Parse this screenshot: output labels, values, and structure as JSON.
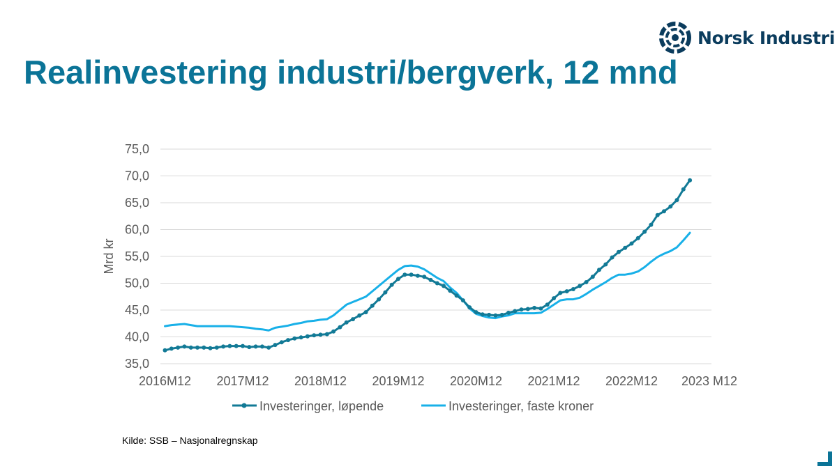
{
  "header": {
    "title": "Realinvestering industri/bergverk, 12 mnd",
    "logo_text": "Norsk Industri"
  },
  "footer": {
    "source": "Kilde: SSB  – Nasjonalregnskap"
  },
  "colors": {
    "title": "#0b7497",
    "series_running": "#127a96",
    "series_fixed": "#18b0e8",
    "grid": "#d9d9d9",
    "axis_text": "#595959",
    "logo": "#0b3c5d"
  },
  "chart_data": {
    "type": "line",
    "title": "",
    "xlabel": "",
    "ylabel": "Mrd kr",
    "ylim": [
      35,
      75
    ],
    "yticks": [
      "35,0",
      "40,0",
      "45,0",
      "50,0",
      "55,0",
      "60,0",
      "65,0",
      "70,0",
      "75,0"
    ],
    "xticks": [
      "2016M12",
      "2017M12",
      "2018M12",
      "2019M12",
      "2020M12",
      "2021M12",
      "2022M12",
      "2023 M12"
    ],
    "grid": true,
    "legend_position": "bottom",
    "x_start": "2016M12",
    "series": [
      {
        "name": "Investeringer, løpende",
        "color": "#127a96",
        "markers": true,
        "values": [
          37.5,
          37.8,
          38.0,
          38.2,
          38.0,
          38.0,
          38.0,
          37.9,
          38.0,
          38.2,
          38.3,
          38.3,
          38.3,
          38.1,
          38.2,
          38.2,
          38.0,
          38.5,
          39.0,
          39.4,
          39.7,
          39.9,
          40.1,
          40.3,
          40.4,
          40.5,
          41.0,
          41.8,
          42.7,
          43.3,
          44.0,
          44.6,
          45.8,
          47.0,
          48.3,
          49.7,
          50.8,
          51.6,
          51.6,
          51.4,
          51.2,
          50.6,
          50.0,
          49.5,
          48.6,
          47.7,
          46.8,
          45.5,
          44.6,
          44.2,
          44.1,
          44.0,
          44.1,
          44.5,
          44.8,
          45.1,
          45.2,
          45.4,
          45.3,
          46.0,
          47.2,
          48.2,
          48.5,
          48.9,
          49.5,
          50.2,
          51.2,
          52.5,
          53.5,
          54.8,
          55.8,
          56.6,
          57.4,
          58.4,
          59.6,
          60.9,
          62.7,
          63.4,
          64.3,
          65.5,
          67.5,
          69.2
        ]
      },
      {
        "name": "Investeringer, faste kroner",
        "color": "#18b0e8",
        "markers": false,
        "values": [
          42.0,
          42.2,
          42.3,
          42.4,
          42.2,
          42.0,
          42.0,
          42.0,
          42.0,
          42.0,
          42.0,
          41.9,
          41.8,
          41.7,
          41.5,
          41.4,
          41.2,
          41.7,
          41.9,
          42.1,
          42.4,
          42.6,
          42.9,
          43.0,
          43.2,
          43.3,
          44.0,
          45.0,
          46.0,
          46.5,
          47.0,
          47.5,
          48.5,
          49.5,
          50.5,
          51.5,
          52.5,
          53.2,
          53.3,
          53.1,
          52.6,
          51.8,
          51.0,
          50.4,
          49.2,
          48.2,
          46.8,
          45.3,
          44.3,
          43.9,
          43.6,
          43.5,
          43.8,
          44.0,
          44.4,
          44.4,
          44.4,
          44.4,
          44.5,
          45.2,
          46.0,
          46.8,
          47.0,
          47.0,
          47.3,
          48.0,
          48.8,
          49.5,
          50.2,
          51.0,
          51.6,
          51.6,
          51.8,
          52.2,
          53.0,
          54.0,
          54.9,
          55.5,
          56.0,
          56.7,
          58.0,
          59.4
        ]
      }
    ]
  }
}
